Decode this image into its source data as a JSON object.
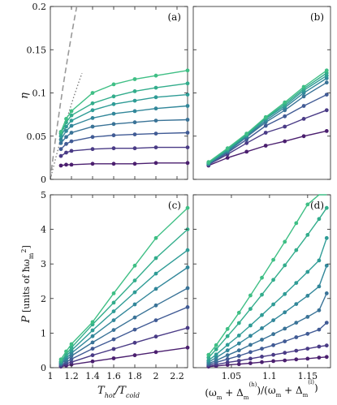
{
  "chart_data": [
    {
      "panel": "a",
      "type": "line",
      "label": "(a)",
      "ylabel": "η",
      "xlim": [
        1,
        2.3
      ],
      "ylim": [
        0,
        0.2
      ],
      "xticks": [
        1,
        1.2,
        1.4,
        1.6,
        1.8,
        2,
        2.2
      ],
      "yticks": [
        0,
        0.05,
        0.1,
        0.15,
        0.2
      ],
      "ytick_labels": [
        "0",
        "0.05",
        "0.1",
        "0.15",
        "0.2"
      ],
      "grid": false,
      "x": [
        1.1,
        1.15,
        1.2,
        1.4,
        1.6,
        1.8,
        2.0,
        2.3
      ],
      "series": [
        {
          "values": [
            0.016,
            0.017,
            0.017,
            0.018,
            0.018,
            0.018,
            0.019,
            0.019
          ]
        },
        {
          "values": [
            0.027,
            0.031,
            0.033,
            0.035,
            0.036,
            0.036,
            0.037,
            0.037
          ]
        },
        {
          "values": [
            0.035,
            0.041,
            0.044,
            0.049,
            0.051,
            0.052,
            0.053,
            0.054
          ]
        },
        {
          "values": [
            0.042,
            0.049,
            0.054,
            0.061,
            0.064,
            0.066,
            0.068,
            0.069
          ]
        },
        {
          "values": [
            0.046,
            0.056,
            0.062,
            0.071,
            0.076,
            0.079,
            0.082,
            0.085
          ]
        },
        {
          "values": [
            0.05,
            0.061,
            0.068,
            0.08,
            0.087,
            0.091,
            0.095,
            0.098
          ]
        },
        {
          "values": [
            0.053,
            0.066,
            0.074,
            0.088,
            0.096,
            0.102,
            0.106,
            0.111
          ]
        },
        {
          "values": [
            0.055,
            0.07,
            0.079,
            0.1,
            0.11,
            0.116,
            0.12,
            0.126
          ]
        }
      ],
      "reference_curves": [
        "carnot-dashed",
        "curzon-ahlborn-dotted"
      ]
    },
    {
      "panel": "b",
      "type": "line",
      "label": "(b)",
      "xlim": [
        1,
        1.18
      ],
      "ylim": [
        0,
        0.2
      ],
      "yticks": [
        0,
        0.05,
        0.1,
        0.15,
        0.2
      ],
      "grid": false,
      "x": [
        1.02,
        1.045,
        1.07,
        1.095,
        1.12,
        1.145,
        1.175
      ],
      "series": [
        {
          "values": [
            0.016,
            0.025,
            0.032,
            0.039,
            0.044,
            0.05,
            0.056
          ]
        },
        {
          "values": [
            0.017,
            0.029,
            0.042,
            0.054,
            0.061,
            0.07,
            0.08
          ]
        },
        {
          "values": [
            0.017,
            0.031,
            0.046,
            0.062,
            0.073,
            0.085,
            0.098
          ]
        },
        {
          "values": [
            0.018,
            0.032,
            0.049,
            0.066,
            0.08,
            0.096,
            0.112
          ]
        },
        {
          "values": [
            0.018,
            0.033,
            0.05,
            0.068,
            0.083,
            0.1,
            0.117
          ]
        },
        {
          "values": [
            0.019,
            0.034,
            0.051,
            0.07,
            0.085,
            0.103,
            0.12
          ]
        },
        {
          "values": [
            0.019,
            0.035,
            0.052,
            0.071,
            0.087,
            0.105,
            0.123
          ]
        },
        {
          "values": [
            0.02,
            0.036,
            0.053,
            0.072,
            0.089,
            0.107,
            0.126
          ]
        }
      ]
    },
    {
      "panel": "c",
      "type": "line",
      "label": "(c)",
      "xlabel": "T",
      "xlabel_sub1": "hot",
      "xlabel_slash": "/T",
      "xlabel_sub2": "cold",
      "ylabel_main": "P",
      "ylabel_units": "[units of ħω",
      "ylabel_sub": "m",
      "ylabel_sup": "2",
      "ylabel_close": "]",
      "xlim": [
        1,
        2.3
      ],
      "ylim": [
        0,
        5
      ],
      "xticks": [
        1,
        1.2,
        1.4,
        1.6,
        1.8,
        2,
        2.2
      ],
      "xtick_labels": [
        "1",
        "1.2",
        "1.4",
        "1.6",
        "1.8",
        "2",
        "2.2"
      ],
      "yticks": [
        0,
        1,
        2,
        3,
        4,
        5
      ],
      "ytick_labels": [
        "0",
        "1",
        "2",
        "3",
        "4",
        "5"
      ],
      "grid": false,
      "x": [
        1.1,
        1.15,
        1.2,
        1.4,
        1.6,
        1.8,
        2.0,
        2.3
      ],
      "series": [
        {
          "values": [
            0.03,
            0.06,
            0.09,
            0.18,
            0.27,
            0.36,
            0.45,
            0.58
          ]
        },
        {
          "values": [
            0.05,
            0.11,
            0.16,
            0.36,
            0.54,
            0.72,
            0.9,
            1.15
          ]
        },
        {
          "values": [
            0.08,
            0.16,
            0.25,
            0.55,
            0.82,
            1.1,
            1.37,
            1.75
          ]
        },
        {
          "values": [
            0.11,
            0.22,
            0.34,
            0.73,
            1.09,
            1.45,
            1.8,
            2.3
          ]
        },
        {
          "values": [
            0.13,
            0.27,
            0.42,
            0.91,
            1.37,
            1.83,
            2.28,
            2.9
          ]
        },
        {
          "values": [
            0.16,
            0.33,
            0.5,
            1.08,
            1.63,
            2.18,
            2.72,
            3.4
          ]
        },
        {
          "values": [
            0.18,
            0.39,
            0.58,
            1.25,
            1.88,
            2.52,
            3.17,
            4.0
          ]
        },
        {
          "values": [
            0.24,
            0.47,
            0.68,
            1.32,
            2.15,
            2.95,
            3.75,
            4.62
          ]
        }
      ]
    },
    {
      "panel": "d",
      "type": "line",
      "label": "(d)",
      "xlabel_1": "(ω",
      "xlabel_sub_m": "m",
      "xlabel_plus": " + Δ",
      "xlabel_sup_h": "(h)",
      "xlabel_mid": ")/(ω",
      "xlabel_sup_l": "(l)",
      "xlabel_end": ")",
      "xlim": [
        1,
        1.18
      ],
      "ylim": [
        0,
        5
      ],
      "xticks": [
        1.05,
        1.1,
        1.15
      ],
      "xtick_labels": [
        "1.05",
        "1.1",
        "1.15"
      ],
      "yticks": [
        0,
        1,
        2,
        3,
        4,
        5
      ],
      "grid": false,
      "x": [
        1.02,
        1.03,
        1.045,
        1.06,
        1.075,
        1.09,
        1.105,
        1.12,
        1.135,
        1.15,
        1.165,
        1.175
      ],
      "series": [
        {
          "values": [
            0.03,
            0.05,
            0.08,
            0.1,
            0.13,
            0.16,
            0.19,
            0.21,
            0.24,
            0.26,
            0.29,
            0.31
          ]
        },
        {
          "values": [
            0.06,
            0.09,
            0.15,
            0.2,
            0.26,
            0.32,
            0.37,
            0.43,
            0.49,
            0.55,
            0.61,
            0.64
          ]
        },
        {
          "values": [
            0.09,
            0.15,
            0.25,
            0.34,
            0.45,
            0.55,
            0.65,
            0.76,
            0.88,
            0.98,
            1.1,
            1.3
          ]
        },
        {
          "values": [
            0.12,
            0.21,
            0.36,
            0.5,
            0.66,
            0.81,
            0.97,
            1.13,
            1.3,
            1.47,
            1.66,
            2.15
          ]
        },
        {
          "values": [
            0.16,
            0.29,
            0.5,
            0.7,
            0.92,
            1.14,
            1.37,
            1.6,
            1.84,
            2.08,
            2.35,
            2.95
          ]
        },
        {
          "values": [
            0.21,
            0.38,
            0.66,
            0.93,
            1.22,
            1.52,
            1.83,
            2.13,
            2.45,
            2.77,
            3.1,
            3.75
          ]
        },
        {
          "values": [
            0.29,
            0.53,
            0.91,
            1.29,
            1.7,
            2.11,
            2.54,
            2.96,
            3.4,
            3.84,
            4.3,
            4.62
          ]
        },
        {
          "values": [
            0.37,
            0.65,
            1.12,
            1.59,
            2.09,
            2.6,
            3.12,
            3.64,
            4.18,
            4.72,
            5.28,
            5.55
          ]
        }
      ]
    }
  ],
  "colors": [
    "#4b1f6f",
    "#4a3b86",
    "#415b95",
    "#3a7397",
    "#32879a",
    "#2f9c96",
    "#33ad8c",
    "#3fbf85"
  ]
}
